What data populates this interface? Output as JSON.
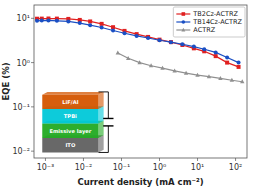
{
  "chart_data": {
    "type": "line",
    "log": true,
    "grid": false,
    "legend": "upper right",
    "x_label": "Current density (mA cm⁻²)",
    "y_label": "EQE (%)",
    "xlim": [
      0.0005,
      200
    ],
    "ylim": [
      0.007,
      20
    ],
    "xticks": [
      {
        "value": 0.001,
        "label": "10⁻³"
      },
      {
        "value": 0.01,
        "label": "10⁻²"
      },
      {
        "value": 0.1,
        "label": "10⁻¹"
      },
      {
        "value": 1,
        "label": "10⁰"
      },
      {
        "value": 10,
        "label": "10¹"
      },
      {
        "value": 100,
        "label": "10²"
      }
    ],
    "yticks": [
      {
        "value": 0.01,
        "label": "10⁻²"
      },
      {
        "value": 0.1,
        "label": "10⁻¹"
      },
      {
        "value": 1,
        "label": "10⁰"
      },
      {
        "value": 10,
        "label": "10¹"
      }
    ],
    "series": [
      {
        "name": "TB2Cz-ACTRZ",
        "color": "#e02020",
        "marker": "square",
        "x": [
          0.0006,
          0.0008,
          0.0012,
          0.002,
          0.004,
          0.008,
          0.015,
          0.03,
          0.06,
          0.12,
          0.25,
          0.5,
          1.0,
          2.0,
          4.0,
          8.0,
          15.0,
          30.0,
          60.0,
          120.0
        ],
        "values": [
          9.8,
          9.85,
          9.9,
          9.85,
          9.7,
          9.2,
          8.5,
          7.5,
          6.3,
          5.2,
          4.4,
          3.8,
          3.3,
          2.9,
          2.5,
          2.1,
          1.8,
          1.4,
          1.0,
          0.8
        ]
      },
      {
        "name": "TB14Cz-ACTRZ",
        "color": "#1a4fc4",
        "marker": "circle",
        "x": [
          0.0006,
          0.0008,
          0.0012,
          0.002,
          0.004,
          0.008,
          0.015,
          0.03,
          0.06,
          0.12,
          0.25,
          0.5,
          1.0,
          2.0,
          4.0,
          8.0,
          15.0,
          30.0,
          60.0,
          120.0
        ],
        "values": [
          8.8,
          8.9,
          8.95,
          8.8,
          8.5,
          7.8,
          7.0,
          6.2,
          5.3,
          4.6,
          4.0,
          3.6,
          3.2,
          2.9,
          2.6,
          2.3,
          2.0,
          1.7,
          1.3,
          1.0
        ]
      },
      {
        "name": "ACTRZ",
        "color": "#909090",
        "marker": "triangle",
        "x": [
          0.08,
          0.15,
          0.3,
          0.6,
          1.2,
          2.5,
          5.0,
          10.0,
          20.0,
          40.0,
          80.0,
          150.0
        ],
        "values": [
          1.65,
          1.25,
          1.0,
          0.85,
          0.75,
          0.65,
          0.58,
          0.52,
          0.48,
          0.44,
          0.4,
          0.37
        ]
      }
    ],
    "annotations": [
      {
        "text": "ITO",
        "color": "#606060"
      },
      {
        "text": "Emissive layer",
        "color": "#22aa22"
      },
      {
        "text": "TPBi",
        "color": "#00c8d8"
      },
      {
        "text": "LiF/Al",
        "color": "#d45500"
      }
    ]
  }
}
